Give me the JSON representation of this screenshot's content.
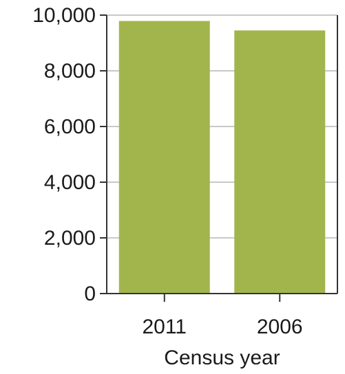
{
  "chart_data": {
    "type": "bar",
    "categories": [
      "2011",
      "2006"
    ],
    "values": [
      9790,
      9450
    ],
    "title": "",
    "xlabel": "Census year",
    "ylabel": "",
    "ylim": [
      0,
      10000
    ],
    "y_ticks": [
      0,
      2000,
      4000,
      6000,
      8000,
      10000
    ],
    "y_tick_labels": [
      "0",
      "2,000",
      "4,000",
      "6,000",
      "8,000",
      "10,000"
    ],
    "grid": true,
    "legend": "none",
    "colors": {
      "bar": "#a2b54c",
      "grid": "#c8c8c8",
      "axis": "#333333"
    }
  }
}
